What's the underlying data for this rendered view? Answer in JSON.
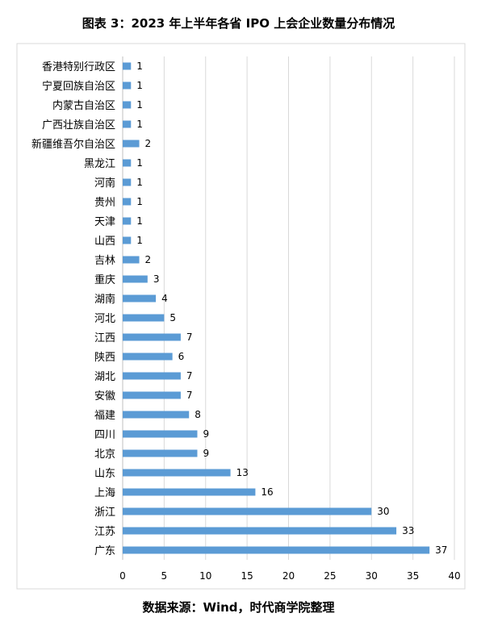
{
  "title": "图表 3：2023 年上半年各省 IPO 上会企业数量分布情况",
  "source": "数据来源：Wind，时代商学院整理",
  "colors": {
    "bar": "#5b9bd5",
    "grid": "#d9d9d9",
    "axis": "#bfbfbf",
    "text": "#000000"
  },
  "chart_data": {
    "type": "bar",
    "orientation": "horizontal",
    "categories": [
      "香港特别行政区",
      "宁夏回族自治区",
      "内蒙古自治区",
      "广西壮族自治区",
      "新疆维吾尔自治区",
      "黑龙江",
      "河南",
      "贵州",
      "天津",
      "山西",
      "吉林",
      "重庆",
      "湖南",
      "河北",
      "江西",
      "陕西",
      "湖北",
      "安徽",
      "福建",
      "四川",
      "北京",
      "山东",
      "上海",
      "浙江",
      "江苏",
      "广东"
    ],
    "values": [
      1,
      1,
      1,
      1,
      2,
      1,
      1,
      1,
      1,
      1,
      2,
      3,
      4,
      5,
      7,
      6,
      7,
      7,
      8,
      9,
      9,
      13,
      16,
      30,
      33,
      37
    ],
    "xlim": [
      0,
      40
    ],
    "xticks": [
      0,
      5,
      10,
      15,
      20,
      25,
      30,
      35,
      40
    ],
    "grid": true,
    "data_labels": true
  }
}
